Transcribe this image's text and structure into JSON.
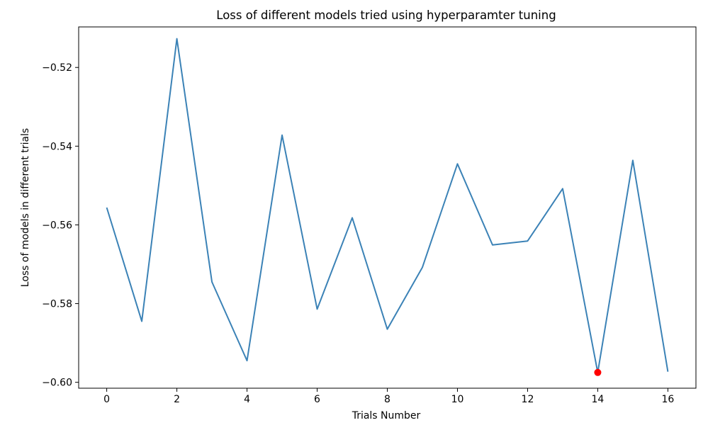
{
  "chart_data": {
    "type": "line",
    "title": "Loss of different models tried using hyperparamter tuning",
    "xlabel": "Trials Number",
    "ylabel": "Loss of models in different trials",
    "x": [
      0,
      1,
      2,
      3,
      4,
      5,
      6,
      7,
      8,
      9,
      10,
      11,
      12,
      13,
      14,
      15,
      16
    ],
    "series": [
      {
        "values": [
          -0.5556,
          -0.5845,
          -0.5127,
          -0.5745,
          -0.5945,
          -0.5372,
          -0.5814,
          -0.5582,
          -0.5865,
          -0.5708,
          -0.5445,
          -0.5651,
          -0.5641,
          -0.5508,
          -0.5975,
          -0.5436,
          -0.5973
        ],
        "color": "#3b82b6"
      }
    ],
    "highlight": {
      "x": 14,
      "y": -0.5975,
      "color": "#ff0000"
    },
    "xticks": [
      0,
      2,
      4,
      6,
      8,
      10,
      12,
      14,
      16
    ],
    "yticks": [
      -0.6,
      -0.58,
      -0.56,
      -0.54,
      -0.52
    ],
    "ytick_labels": [
      "−0.60",
      "−0.58",
      "−0.56",
      "−0.54",
      "−0.52"
    ],
    "xlim": [
      -0.8,
      16.8
    ],
    "ylim": [
      -0.6015,
      -0.5097
    ],
    "grid": false
  }
}
